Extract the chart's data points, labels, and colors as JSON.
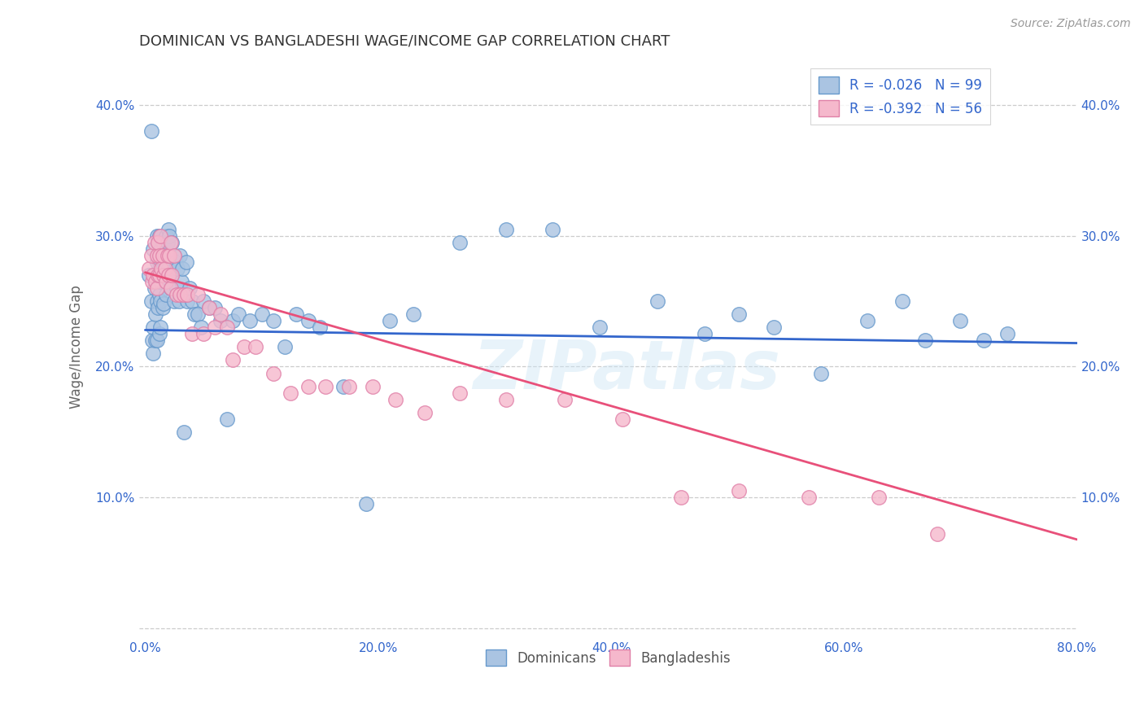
{
  "title": "DOMINICAN VS BANGLADESHI WAGE/INCOME GAP CORRELATION CHART",
  "source": "Source: ZipAtlas.com",
  "ylabel": "Wage/Income Gap",
  "xlim": [
    -0.005,
    0.8
  ],
  "ylim": [
    -0.005,
    0.435
  ],
  "xticks": [
    0.0,
    0.2,
    0.4,
    0.6,
    0.8
  ],
  "xtick_labels": [
    "0.0%",
    "20.0%",
    "40.0%",
    "60.0%",
    "80.0%"
  ],
  "yticks": [
    0.0,
    0.1,
    0.2,
    0.3,
    0.4
  ],
  "ytick_labels": [
    "",
    "10.0%",
    "20.0%",
    "30.0%",
    "40.0%"
  ],
  "dominican_color": "#aac4e2",
  "bangladeshi_color": "#f5b8cc",
  "dominican_edge": "#6699cc",
  "bangladeshi_edge": "#e080a8",
  "dominican_R": -0.026,
  "dominican_N": 99,
  "bangladeshi_R": -0.392,
  "bangladeshi_N": 56,
  "regression_blue": "#3366cc",
  "regression_pink": "#e8507a",
  "watermark": "ZIPatlas",
  "legend_label1": "Dominicans",
  "legend_label2": "Bangladeshis",
  "blue_line_y0": 0.228,
  "blue_line_y1": 0.218,
  "pink_line_y0": 0.272,
  "pink_line_y1": 0.068,
  "dominican_x": [
    0.003,
    0.005,
    0.005,
    0.006,
    0.007,
    0.007,
    0.007,
    0.008,
    0.008,
    0.009,
    0.009,
    0.01,
    0.01,
    0.01,
    0.01,
    0.011,
    0.011,
    0.011,
    0.012,
    0.012,
    0.012,
    0.012,
    0.013,
    0.013,
    0.013,
    0.013,
    0.014,
    0.014,
    0.015,
    0.015,
    0.015,
    0.016,
    0.016,
    0.016,
    0.017,
    0.017,
    0.018,
    0.018,
    0.018,
    0.019,
    0.019,
    0.02,
    0.02,
    0.021,
    0.021,
    0.022,
    0.022,
    0.023,
    0.023,
    0.025,
    0.025,
    0.026,
    0.027,
    0.028,
    0.029,
    0.03,
    0.031,
    0.032,
    0.033,
    0.035,
    0.036,
    0.038,
    0.04,
    0.042,
    0.045,
    0.048,
    0.05,
    0.055,
    0.06,
    0.065,
    0.07,
    0.075,
    0.08,
    0.09,
    0.1,
    0.11,
    0.12,
    0.13,
    0.14,
    0.15,
    0.17,
    0.19,
    0.21,
    0.23,
    0.27,
    0.31,
    0.35,
    0.39,
    0.44,
    0.48,
    0.51,
    0.54,
    0.58,
    0.62,
    0.65,
    0.67,
    0.7,
    0.72,
    0.74
  ],
  "dominican_y": [
    0.27,
    0.38,
    0.25,
    0.22,
    0.23,
    0.21,
    0.29,
    0.27,
    0.26,
    0.24,
    0.22,
    0.3,
    0.28,
    0.25,
    0.22,
    0.295,
    0.27,
    0.245,
    0.3,
    0.28,
    0.255,
    0.225,
    0.29,
    0.265,
    0.25,
    0.23,
    0.29,
    0.265,
    0.295,
    0.275,
    0.245,
    0.295,
    0.27,
    0.248,
    0.29,
    0.265,
    0.3,
    0.28,
    0.255,
    0.295,
    0.27,
    0.305,
    0.275,
    0.3,
    0.27,
    0.285,
    0.26,
    0.295,
    0.27,
    0.285,
    0.25,
    0.28,
    0.26,
    0.275,
    0.25,
    0.285,
    0.265,
    0.275,
    0.15,
    0.28,
    0.25,
    0.26,
    0.25,
    0.24,
    0.24,
    0.23,
    0.25,
    0.245,
    0.245,
    0.235,
    0.16,
    0.235,
    0.24,
    0.235,
    0.24,
    0.235,
    0.215,
    0.24,
    0.235,
    0.23,
    0.185,
    0.095,
    0.235,
    0.24,
    0.295,
    0.305,
    0.305,
    0.23,
    0.25,
    0.225,
    0.24,
    0.23,
    0.195,
    0.235,
    0.25,
    0.22,
    0.235,
    0.22,
    0.225
  ],
  "bangladeshi_x": [
    0.003,
    0.005,
    0.006,
    0.007,
    0.008,
    0.009,
    0.01,
    0.01,
    0.011,
    0.011,
    0.012,
    0.012,
    0.013,
    0.014,
    0.015,
    0.016,
    0.017,
    0.018,
    0.019,
    0.02,
    0.021,
    0.022,
    0.022,
    0.023,
    0.025,
    0.027,
    0.03,
    0.033,
    0.036,
    0.04,
    0.045,
    0.05,
    0.055,
    0.06,
    0.065,
    0.07,
    0.075,
    0.085,
    0.095,
    0.11,
    0.125,
    0.14,
    0.155,
    0.175,
    0.195,
    0.215,
    0.24,
    0.27,
    0.31,
    0.36,
    0.41,
    0.46,
    0.51,
    0.57,
    0.63,
    0.68
  ],
  "bangladeshi_y": [
    0.275,
    0.285,
    0.265,
    0.27,
    0.295,
    0.265,
    0.285,
    0.26,
    0.295,
    0.27,
    0.285,
    0.27,
    0.3,
    0.275,
    0.285,
    0.27,
    0.275,
    0.265,
    0.285,
    0.27,
    0.285,
    0.26,
    0.295,
    0.27,
    0.285,
    0.255,
    0.255,
    0.255,
    0.255,
    0.225,
    0.255,
    0.225,
    0.245,
    0.23,
    0.24,
    0.23,
    0.205,
    0.215,
    0.215,
    0.195,
    0.18,
    0.185,
    0.185,
    0.185,
    0.185,
    0.175,
    0.165,
    0.18,
    0.175,
    0.175,
    0.16,
    0.1,
    0.105,
    0.1,
    0.1,
    0.072
  ]
}
